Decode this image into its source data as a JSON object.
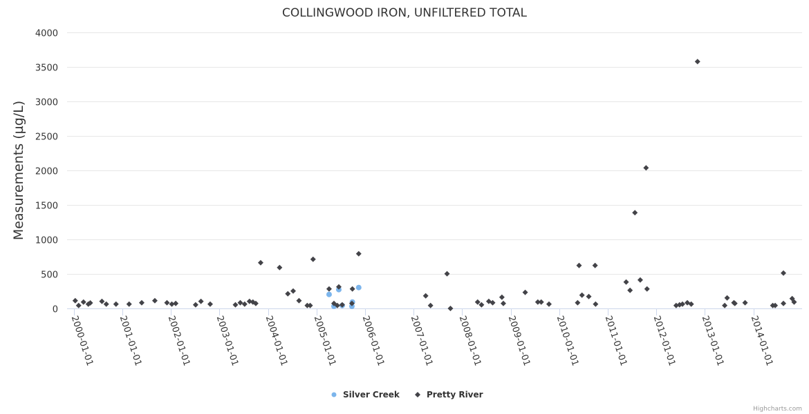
{
  "chart_data": {
    "type": "scatter",
    "title": "COLLINGWOOD IRON, UNFILTERED TOTAL",
    "xlabel": "",
    "ylabel": "Measurements (µg/L)",
    "ylim": [
      0,
      4000
    ],
    "yticks": [
      0,
      500,
      1000,
      1500,
      2000,
      2500,
      3000,
      3500,
      4000
    ],
    "xlim": [
      2000,
      2015
    ],
    "xticks": [
      {
        "value": 2000,
        "label": "2000-01-01"
      },
      {
        "value": 2001,
        "label": "2001-01-01"
      },
      {
        "value": 2002,
        "label": "2002-01-01"
      },
      {
        "value": 2003,
        "label": "2003-01-01"
      },
      {
        "value": 2004,
        "label": "2004-01-01"
      },
      {
        "value": 2005,
        "label": "2005-01-01"
      },
      {
        "value": 2006,
        "label": "2006-01-01"
      },
      {
        "value": 2007,
        "label": "2007-01-01"
      },
      {
        "value": 2008,
        "label": "2008-01-01"
      },
      {
        "value": 2009,
        "label": "2009-01-01"
      },
      {
        "value": 2010,
        "label": "2010-01-01"
      },
      {
        "value": 2011,
        "label": "2011-01-01"
      },
      {
        "value": 2012,
        "label": "2012-01-01"
      },
      {
        "value": 2013,
        "label": "2013-01-01"
      },
      {
        "value": 2014,
        "label": "2014-01-01"
      }
    ],
    "grid": true,
    "legend_position": "bottom-center",
    "series": [
      {
        "name": "Silver Creek",
        "color": "#7cb5ec",
        "marker": "circle",
        "points": [
          [
            2005.26,
            206
          ],
          [
            2005.36,
            34
          ],
          [
            2005.46,
            276
          ],
          [
            2005.53,
            46
          ],
          [
            2005.73,
            34
          ],
          [
            2005.74,
            96
          ],
          [
            2005.87,
            306
          ]
        ]
      },
      {
        "name": "Pretty River",
        "color": "#434348",
        "marker": "diamond",
        "points": [
          [
            2000.03,
            116
          ],
          [
            2000.1,
            46
          ],
          [
            2000.2,
            96
          ],
          [
            2000.3,
            66
          ],
          [
            2000.34,
            83
          ],
          [
            2000.58,
            106
          ],
          [
            2000.67,
            66
          ],
          [
            2000.87,
            66
          ],
          [
            2001.14,
            66
          ],
          [
            2001.4,
            86
          ],
          [
            2001.67,
            116
          ],
          [
            2001.92,
            86
          ],
          [
            2002.02,
            66
          ],
          [
            2002.1,
            76
          ],
          [
            2002.51,
            56
          ],
          [
            2002.62,
            106
          ],
          [
            2002.81,
            66
          ],
          [
            2003.33,
            56
          ],
          [
            2003.43,
            86
          ],
          [
            2003.52,
            66
          ],
          [
            2003.62,
            106
          ],
          [
            2003.69,
            96
          ],
          [
            2003.75,
            76
          ],
          [
            2003.85,
            666
          ],
          [
            2004.24,
            596
          ],
          [
            2004.41,
            216
          ],
          [
            2004.52,
            256
          ],
          [
            2004.64,
            116
          ],
          [
            2004.81,
            46
          ],
          [
            2004.87,
            46
          ],
          [
            2004.93,
            716
          ],
          [
            2005.26,
            286
          ],
          [
            2005.36,
            76
          ],
          [
            2005.43,
            46
          ],
          [
            2005.46,
            316
          ],
          [
            2005.53,
            56
          ],
          [
            2005.73,
            76
          ],
          [
            2005.74,
            286
          ],
          [
            2005.87,
            796
          ],
          [
            2007.25,
            186
          ],
          [
            2007.35,
            46
          ],
          [
            2007.69,
            506
          ],
          [
            2007.76,
            3
          ],
          [
            2008.32,
            96
          ],
          [
            2008.4,
            56
          ],
          [
            2008.55,
            106
          ],
          [
            2008.63,
            86
          ],
          [
            2008.82,
            166
          ],
          [
            2008.85,
            76
          ],
          [
            2009.3,
            236
          ],
          [
            2009.56,
            96
          ],
          [
            2009.63,
            96
          ],
          [
            2009.79,
            66
          ],
          [
            2010.38,
            86
          ],
          [
            2010.41,
            626
          ],
          [
            2010.47,
            196
          ],
          [
            2010.61,
            176
          ],
          [
            2010.74,
            626
          ],
          [
            2010.75,
            66
          ],
          [
            2011.38,
            386
          ],
          [
            2011.46,
            266
          ],
          [
            2011.56,
            1390
          ],
          [
            2011.67,
            416
          ],
          [
            2011.79,
            2040
          ],
          [
            2011.81,
            286
          ],
          [
            2012.41,
            46
          ],
          [
            2012.48,
            56
          ],
          [
            2012.54,
            66
          ],
          [
            2012.64,
            86
          ],
          [
            2012.72,
            66
          ],
          [
            2012.85,
            3580
          ],
          [
            2013.41,
            46
          ],
          [
            2013.46,
            156
          ],
          [
            2013.6,
            86
          ],
          [
            2013.62,
            76
          ],
          [
            2013.83,
            86
          ],
          [
            2014.4,
            46
          ],
          [
            2014.45,
            46
          ],
          [
            2014.62,
            516
          ],
          [
            2014.62,
            76
          ],
          [
            2014.8,
            146
          ],
          [
            2014.84,
            96
          ]
        ]
      }
    ],
    "credits": "Highcharts.com"
  }
}
